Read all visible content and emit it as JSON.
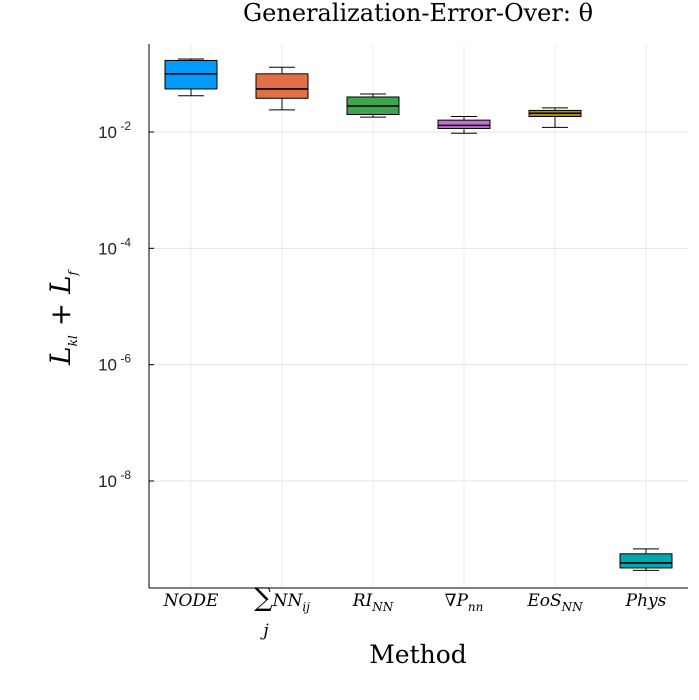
{
  "chart_data": {
    "type": "box",
    "title": "Generalization-Error-Over:  θ",
    "xlabel": "Method",
    "ylabel": "L_kl + L_f",
    "yscale": "log10",
    "ylim": [
      1e-10,
      0.5
    ],
    "yticks": [
      0.01,
      0.0001,
      1e-06,
      1e-08
    ],
    "ytick_labels": [
      "10-2",
      "10-4",
      "10-6",
      "10-8"
    ],
    "grid": true,
    "legend": "none",
    "categories": [
      "NODE",
      "∑j NNij",
      "RINN",
      "∇Pnn",
      "EoSNN",
      "Phys"
    ],
    "boxes": [
      {
        "category": "NODE",
        "whisker_low": 0.042,
        "q1": 0.055,
        "median": 0.1,
        "q3": 0.17,
        "whisker_high": 0.18,
        "color": "#009AFA"
      },
      {
        "category": "∑j NNij",
        "whisker_low": 0.024,
        "q1": 0.038,
        "median": 0.055,
        "q3": 0.1,
        "whisker_high": 0.13,
        "color": "#E36F47"
      },
      {
        "category": "RINN",
        "whisker_low": 0.018,
        "q1": 0.02,
        "median": 0.028,
        "q3": 0.04,
        "whisker_high": 0.045,
        "color": "#3EA44E"
      },
      {
        "category": "∇Pnn",
        "whisker_low": 0.0095,
        "q1": 0.0115,
        "median": 0.013,
        "q3": 0.016,
        "whisker_high": 0.0185,
        "color": "#C271D2"
      },
      {
        "category": "EoSNN",
        "whisker_low": 0.012,
        "q1": 0.0185,
        "median": 0.021,
        "q3": 0.0235,
        "whisker_high": 0.026,
        "color": "#AC8D18"
      },
      {
        "category": "Phys",
        "whisker_low": 2.9e-10,
        "q1": 3.2e-10,
        "median": 3.9e-10,
        "q3": 5.6e-10,
        "whisker_high": 6.8e-10,
        "color": "#00A9AD"
      }
    ]
  }
}
